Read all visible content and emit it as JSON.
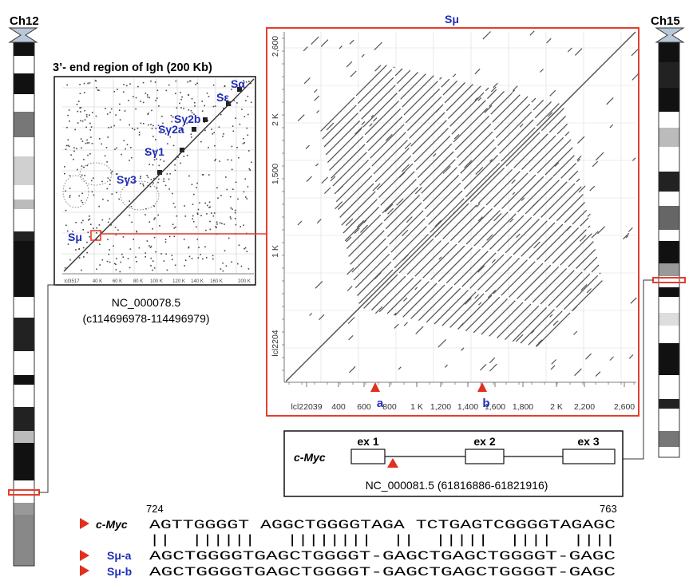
{
  "chromosomes": {
    "left_label": "Ch12",
    "right_label": "Ch15"
  },
  "small_plot": {
    "title": "3’- end region of Igh (200 Kb)",
    "switch_labels": [
      "Sα",
      "Sε",
      "Sγ2b",
      "Sγ2a",
      "Sγ1",
      "Sγ3",
      "Sμ"
    ],
    "axis_ticks": [
      "lcl3517",
      "40 K",
      "60 K",
      "80 K",
      "100 K",
      "120 K",
      "140 K",
      "160 K",
      "200 K"
    ],
    "accession": "NC_000078.5",
    "coords": "(c114696978-114496979)"
  },
  "big_plot": {
    "title": "Sμ",
    "x_ticks": [
      "lcl22039",
      "400",
      "600",
      "800",
      "1 K",
      "1,200",
      "1,400",
      "1,600",
      "1,800",
      "2 K",
      "2,200",
      "2,600"
    ],
    "y_ticks": [
      "2,600",
      "2 K",
      "1,500",
      "1 K",
      "lcl2204"
    ],
    "marker_a": "a",
    "marker_b": "b"
  },
  "gene": {
    "name": "c-Myc",
    "exons": [
      "ex 1",
      "ex 2",
      "ex 3"
    ],
    "accession": "NC_000081.5 (61816886-61821916)"
  },
  "alignment": {
    "start": "724",
    "end": "763",
    "rows": [
      {
        "label": "c-Myc",
        "seq": "AGTTGGGGT AGGCTGGGGTAGA TCTGAGTCGGGGTAGAGC"
      },
      {
        "label": "",
        "seq": "||  ||||||   ||||||||  ||  |||||  ||||  ||||"
      },
      {
        "label": "Sμ-a",
        "seq": "AGCTGGGGTGAGCTGGGGT-GAGCTGAGCTGGGGT-GAGC"
      },
      {
        "label": "Sμ-b",
        "seq": "AGCTGGGGTGAGCTGGGGT-GAGCTGAGCTGGGGT-GAGC"
      }
    ]
  },
  "colors": {
    "accent_red": "#e0301e",
    "label_blue": "#1f2db8",
    "highlight_box": "#e53e2e"
  }
}
